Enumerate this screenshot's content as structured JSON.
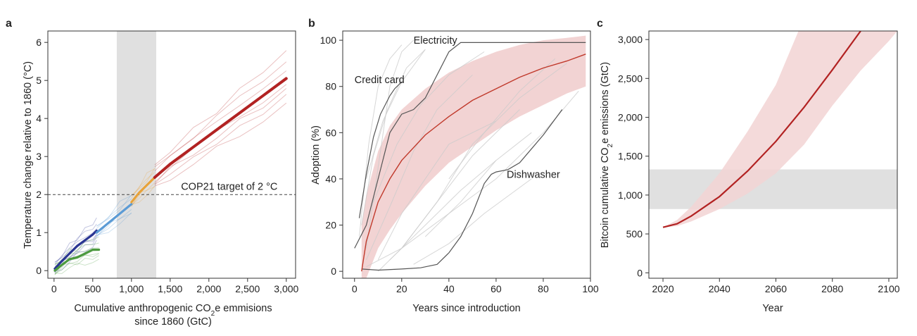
{
  "chart_data": [
    {
      "panel": "a",
      "type": "line",
      "xlabel_line1_pre": "Cumulative anthropogenic CO",
      "xlabel_line1_sub": "2",
      "xlabel_line1_post": "e emmisions",
      "xlabel_line2": "since 1860 (GtC)",
      "ylabel": "Temperature change relative to 1860 (°C)",
      "xlim": [
        -80,
        3120
      ],
      "ylim": [
        -0.2,
        6.3
      ],
      "xticks": [
        0,
        500,
        1000,
        1500,
        2000,
        2500,
        3000
      ],
      "xtick_labels": [
        "0",
        "500",
        "1,000",
        "1,500",
        "2,000",
        "2,500",
        "3,000"
      ],
      "yticks": [
        0,
        1,
        2,
        3,
        4,
        5,
        6
      ],
      "ytick_labels": [
        "0",
        "1",
        "2",
        "3",
        "4",
        "5",
        "6"
      ],
      "shaded_band_x": [
        810,
        1320
      ],
      "reference_line_y": 2,
      "reference_line_style": "dashed",
      "annotations": [
        {
          "text": "COP21 target of 2 °C",
          "x": 1640,
          "y": 2.12
        }
      ],
      "colors": {
        "red": "#b22222",
        "orange": "#e8a33a",
        "light_blue": "#5b9bd5",
        "dark_blue": "#2a3593",
        "green": "#4c9a3f",
        "band": "#e0e0e0"
      },
      "series": [
        {
          "color": "#2a3593",
          "x": [
            10,
            100,
            200,
            300,
            400,
            500,
            550
          ],
          "y": [
            0.05,
            0.25,
            0.45,
            0.65,
            0.8,
            0.95,
            1.05
          ]
        },
        {
          "color": "#5b9bd5",
          "x": [
            550,
            700,
            850,
            1000
          ],
          "y": [
            1.0,
            1.25,
            1.5,
            1.75
          ]
        },
        {
          "color": "#e8a33a",
          "x": [
            1000,
            1100,
            1200,
            1300
          ],
          "y": [
            1.8,
            2.05,
            2.25,
            2.45
          ]
        },
        {
          "color": "#b22222",
          "x": [
            1300,
            1500,
            1800,
            2100,
            2400,
            2700,
            3000
          ],
          "y": [
            2.45,
            2.8,
            3.25,
            3.7,
            4.15,
            4.6,
            5.05
          ]
        },
        {
          "color": "#4c9a3f",
          "x": [
            10,
            100,
            200,
            300,
            400,
            500,
            580
          ],
          "y": [
            0.0,
            0.15,
            0.3,
            0.35,
            0.45,
            0.55,
            0.55
          ]
        }
      ]
    },
    {
      "panel": "b",
      "type": "line",
      "xlabel": "Years since introduction",
      "ylabel": "Adoption (%)",
      "xlim": [
        -5,
        100
      ],
      "ylim": [
        -3,
        104
      ],
      "xticks": [
        0,
        20,
        40,
        60,
        80,
        100
      ],
      "xtick_labels": [
        "0",
        "20",
        "40",
        "60",
        "80",
        "100"
      ],
      "yticks": [
        0,
        20,
        40,
        60,
        80,
        100
      ],
      "ytick_labels": [
        "0",
        "20",
        "40",
        "60",
        "80",
        "100"
      ],
      "colors": {
        "fit": "#c0392b",
        "band": "#f2d3d3",
        "highlight": "#555555",
        "background": "#cccccc"
      },
      "annotations": [
        {
          "text": "Electricity",
          "x": 25,
          "y": 98.5
        },
        {
          "text": "Credit card",
          "x": 0,
          "y": 81.5
        },
        {
          "text": "Dishwasher",
          "x": 64.5,
          "y": 40.5
        }
      ],
      "fit": {
        "x": [
          3,
          5,
          10,
          15,
          20,
          30,
          40,
          50,
          60,
          70,
          80,
          90,
          98
        ],
        "y": [
          0,
          13,
          30,
          40,
          48,
          59,
          67,
          74,
          79,
          84,
          88,
          91,
          94
        ]
      },
      "fit_band_upper": [
        20,
        33,
        52,
        63,
        70,
        79,
        86,
        91,
        95,
        98,
        100,
        101,
        102
      ],
      "fit_band_lower": [
        -3,
        -3,
        10,
        18,
        25,
        37,
        47,
        54,
        61,
        67,
        72,
        77,
        80
      ],
      "series": [
        {
          "name": "Electricity",
          "x": [
            0,
            5,
            10,
            15,
            20,
            25,
            30,
            35,
            40,
            45,
            50,
            70,
            98
          ],
          "y": [
            10,
            20,
            40,
            60,
            68,
            70,
            75,
            85,
            95,
            99,
            99,
            99,
            99
          ]
        },
        {
          "name": "Credit card",
          "x": [
            2,
            5,
            8,
            11,
            13,
            15,
            17,
            20
          ],
          "y": [
            23,
            42,
            58,
            68,
            72,
            76,
            79,
            82
          ]
        },
        {
          "name": "Dishwasher",
          "x": [
            3,
            10,
            20,
            28,
            35,
            40,
            45,
            50,
            55,
            58,
            60,
            65,
            70,
            75,
            80,
            88
          ],
          "y": [
            1,
            0.5,
            1,
            1.5,
            3,
            8,
            15,
            25,
            38,
            42,
            43,
            44,
            47,
            53,
            59,
            70
          ]
        }
      ],
      "background_series": [
        {
          "x": [
            5,
            15,
            25,
            35,
            50
          ],
          "y": [
            5,
            28,
            52,
            70,
            85
          ]
        },
        {
          "x": [
            10,
            20,
            30,
            40,
            60
          ],
          "y": [
            5,
            25,
            40,
            55,
            65
          ]
        },
        {
          "x": [
            5,
            10,
            15,
            20,
            25
          ],
          "y": [
            10,
            45,
            80,
            95,
            100
          ]
        },
        {
          "x": [
            2,
            6,
            10,
            15,
            20
          ],
          "y": [
            15,
            55,
            80,
            92,
            98
          ]
        },
        {
          "x": [
            5,
            20,
            40,
            60,
            80,
            95
          ],
          "y": [
            2,
            10,
            25,
            40,
            60,
            78
          ]
        },
        {
          "x": [
            10,
            20,
            35,
            50,
            70
          ],
          "y": [
            0,
            10,
            30,
            50,
            70
          ]
        },
        {
          "x": [
            15,
            30,
            45,
            60
          ],
          "y": [
            5,
            20,
            35,
            48
          ]
        },
        {
          "x": [
            3,
            8,
            14,
            22,
            30
          ],
          "y": [
            20,
            50,
            70,
            88,
            96
          ]
        },
        {
          "x": [
            20,
            35,
            50,
            70,
            90
          ],
          "y": [
            10,
            30,
            55,
            75,
            90
          ]
        },
        {
          "x": [
            40,
            55,
            70,
            85
          ],
          "y": [
            40,
            60,
            78,
            92
          ]
        },
        {
          "x": [
            8,
            18,
            28,
            40,
            55
          ],
          "y": [
            30,
            55,
            72,
            85,
            95
          ]
        },
        {
          "x": [
            25,
            40,
            55,
            75
          ],
          "y": [
            3,
            12,
            25,
            40
          ]
        },
        {
          "x": [
            5,
            12,
            20,
            30
          ],
          "y": [
            40,
            65,
            82,
            96
          ]
        },
        {
          "x": [
            30,
            45,
            60,
            75
          ],
          "y": [
            15,
            30,
            48,
            60
          ]
        }
      ]
    },
    {
      "panel": "c",
      "type": "line",
      "xlabel": "Year",
      "ylabel_pre": "Bitcoin cumulative CO",
      "ylabel_sub": "2",
      "ylabel_post": "e emissions (GtC)",
      "xlim": [
        2015,
        2103
      ],
      "ylim": [
        -70,
        3110
      ],
      "xticks": [
        2020,
        2040,
        2060,
        2080,
        2100
      ],
      "xtick_labels": [
        "2020",
        "2040",
        "2060",
        "2080",
        "2100"
      ],
      "yticks": [
        0,
        500,
        1000,
        1500,
        2000,
        2500,
        3000
      ],
      "ytick_labels": [
        "0",
        "500",
        "1,000",
        "1,500",
        "2,000",
        "2,500",
        "3,000"
      ],
      "shaded_band_y": [
        820,
        1330
      ],
      "colors": {
        "line": "#b22222",
        "band": "#f2d3d3",
        "grey_band": "#e0e0e0"
      },
      "series": [
        {
          "x": [
            2020,
            2025,
            2030,
            2040,
            2050,
            2060,
            2070,
            2080,
            2090
          ],
          "y": [
            585,
            630,
            730,
            980,
            1310,
            1690,
            2130,
            2610,
            3110
          ]
        }
      ],
      "band_upper": [
        585,
        680,
        850,
        1280,
        1820,
        2420,
        3110,
        3110,
        3110
      ],
      "band_lower": [
        585,
        600,
        660,
        820,
        1020,
        1280,
        1650,
        2150,
        2600
      ],
      "band_x": [
        2020,
        2025,
        2030,
        2040,
        2050,
        2060,
        2070,
        2080,
        2090
      ],
      "band_extra": {
        "upper_end_x": 2068,
        "lower_tail": [
          [
            2100,
            2980
          ],
          [
            2103,
            3110
          ]
        ]
      }
    }
  ]
}
